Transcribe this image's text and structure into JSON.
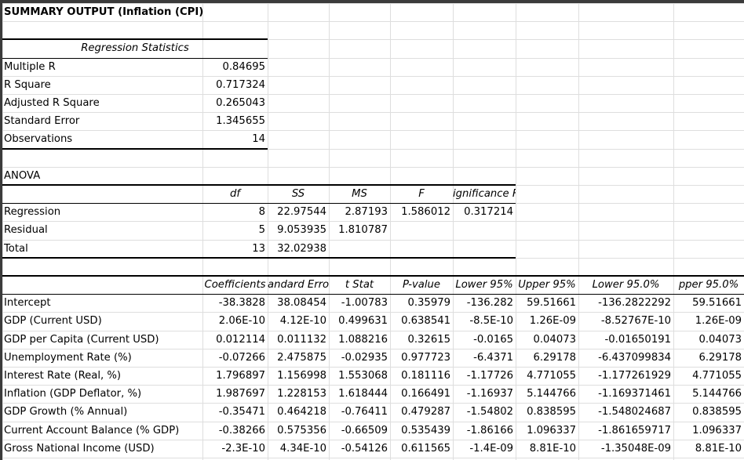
{
  "title": "SUMMARY OUTPUT (Inflation (CPI)",
  "regression_statistics": {
    "header": "Regression Statistics",
    "rows": [
      {
        "label": "Multiple R",
        "value": "0.84695"
      },
      {
        "label": "R Square",
        "value": "0.717324"
      },
      {
        "label": "Adjusted R Square",
        "value": "0.265043"
      },
      {
        "label": "Standard Error",
        "value": "1.345655"
      },
      {
        "label": "Observations",
        "value": "14"
      }
    ]
  },
  "anova": {
    "label": "ANOVA",
    "headers": [
      "df",
      "SS",
      "MS",
      "F",
      "ignificance F"
    ],
    "rows": [
      {
        "label": "Regression",
        "df": "8",
        "ss": "22.97544",
        "ms": "2.87193",
        "f": "1.586012",
        "sig": "0.317214"
      },
      {
        "label": "Residual",
        "df": "5",
        "ss": "9.053935",
        "ms": "1.810787",
        "f": "",
        "sig": ""
      },
      {
        "label": "Total",
        "df": "13",
        "ss": "32.02938",
        "ms": "",
        "f": "",
        "sig": ""
      }
    ]
  },
  "coefficients": {
    "headers": [
      "Coefficients",
      "andard Erro",
      "t Stat",
      "P-value",
      "Lower 95%",
      "Upper 95%",
      "Lower 95.0%",
      "pper 95.0%"
    ],
    "rows": [
      {
        "label": "Intercept",
        "values": [
          "-38.3828",
          "38.08454",
          "-1.00783",
          "0.35979",
          "-136.282",
          "59.51661",
          "-136.2822292",
          "59.51661"
        ]
      },
      {
        "label": "GDP (Current USD)",
        "values": [
          "2.06E-10",
          "4.12E-10",
          "0.499631",
          "0.638541",
          "-8.5E-10",
          "1.26E-09",
          "-8.52767E-10",
          "1.26E-09"
        ]
      },
      {
        "label": "GDP per Capita (Current USD)",
        "values": [
          "0.012114",
          "0.011132",
          "1.088216",
          "0.32615",
          "-0.0165",
          "0.04073",
          "-0.01650191",
          "0.04073"
        ]
      },
      {
        "label": "Unemployment Rate (%)",
        "values": [
          "-0.07266",
          "2.475875",
          "-0.02935",
          "0.977723",
          "-6.4371",
          "6.29178",
          "-6.437099834",
          "6.29178"
        ]
      },
      {
        "label": "Interest Rate (Real, %)",
        "values": [
          "1.796897",
          "1.156998",
          "1.553068",
          "0.181116",
          "-1.17726",
          "4.771055",
          "-1.177261929",
          "4.771055"
        ]
      },
      {
        "label": "Inflation (GDP Deflator, %)",
        "values": [
          "1.987697",
          "1.228153",
          "1.618444",
          "0.166491",
          "-1.16937",
          "5.144766",
          "-1.169371461",
          "5.144766"
        ]
      },
      {
        "label": "GDP Growth (% Annual)",
        "values": [
          "-0.35471",
          "0.464218",
          "-0.76411",
          "0.479287",
          "-1.54802",
          "0.838595",
          "-1.548024687",
          "0.838595"
        ]
      },
      {
        "label": "Current Account Balance (% GDP)",
        "values": [
          "-0.38266",
          "0.575356",
          "-0.66509",
          "0.535439",
          "-1.86166",
          "1.096337",
          "-1.861659717",
          "1.096337"
        ]
      },
      {
        "label": "Gross National Income (USD)",
        "values": [
          "-2.3E-10",
          "4.34E-10",
          "-0.54126",
          "0.611565",
          "-1.4E-09",
          "8.81E-10",
          "-1.35048E-09",
          "8.81E-10"
        ]
      }
    ]
  }
}
